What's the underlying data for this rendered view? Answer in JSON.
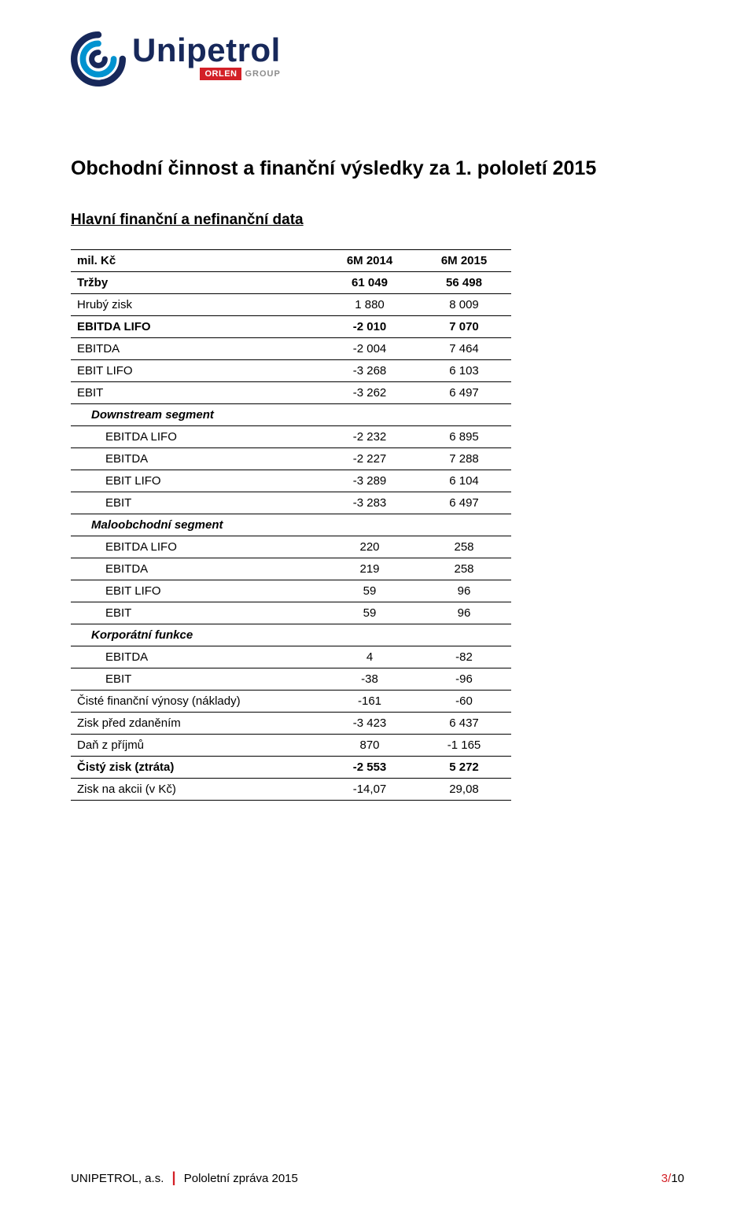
{
  "logo": {
    "company": "Unipetrol",
    "orlen": "ORLEN",
    "group": "GROUP",
    "mark_outer": "#17285a",
    "mark_inner": "#0093d0"
  },
  "title": "Obchodní činnost a finanční výsledky za 1. pololetí 2015",
  "section": "Hlavní finanční a nefinanční data",
  "table": {
    "head": [
      "mil. Kč",
      "6M 2014",
      "6M 2015"
    ],
    "rows": [
      {
        "label": "Tržby",
        "c1": "61 049",
        "c2": "56 498",
        "bold": true,
        "indent": 0
      },
      {
        "label": "Hrubý zisk",
        "c1": "1 880",
        "c2": "8 009",
        "bold": false,
        "indent": 0
      },
      {
        "label": "EBITDA LIFO",
        "c1": "-2 010",
        "c2": "7 070",
        "bold": true,
        "indent": 0
      },
      {
        "label": "EBITDA",
        "c1": "-2 004",
        "c2": "7 464",
        "bold": false,
        "indent": 0
      },
      {
        "label": "EBIT LIFO",
        "c1": "-3 268",
        "c2": "6 103",
        "bold": false,
        "indent": 0
      },
      {
        "label": "EBIT",
        "c1": "-3 262",
        "c2": "6 497",
        "bold": false,
        "indent": 0
      },
      {
        "label": "Downstream segment",
        "c1": "",
        "c2": "",
        "bold": false,
        "indent": 1,
        "italic": true
      },
      {
        "label": "EBITDA LIFO",
        "c1": "-2 232",
        "c2": "6 895",
        "bold": false,
        "indent": 2
      },
      {
        "label": "EBITDA",
        "c1": "-2 227",
        "c2": "7 288",
        "bold": false,
        "indent": 2
      },
      {
        "label": "EBIT LIFO",
        "c1": "-3 289",
        "c2": "6 104",
        "bold": false,
        "indent": 2
      },
      {
        "label": "EBIT",
        "c1": "-3 283",
        "c2": "6 497",
        "bold": false,
        "indent": 2
      },
      {
        "label": "Maloobchodní segment",
        "c1": "",
        "c2": "",
        "bold": false,
        "indent": 1,
        "italic": true
      },
      {
        "label": "EBITDA LIFO",
        "c1": "220",
        "c2": "258",
        "bold": false,
        "indent": 2
      },
      {
        "label": "EBITDA",
        "c1": "219",
        "c2": "258",
        "bold": false,
        "indent": 2
      },
      {
        "label": "EBIT LIFO",
        "c1": "59",
        "c2": "96",
        "bold": false,
        "indent": 2
      },
      {
        "label": "EBIT",
        "c1": "59",
        "c2": "96",
        "bold": false,
        "indent": 2
      },
      {
        "label": "Korporátní funkce",
        "c1": "",
        "c2": "",
        "bold": false,
        "indent": 1,
        "italic": true
      },
      {
        "label": "EBITDA",
        "c1": "4",
        "c2": "-82",
        "bold": false,
        "indent": 2
      },
      {
        "label": "EBIT",
        "c1": "-38",
        "c2": "-96",
        "bold": false,
        "indent": 2
      },
      {
        "label": "Čisté finanční výnosy (náklady)",
        "c1": "-161",
        "c2": "-60",
        "bold": false,
        "indent": 0
      },
      {
        "label": "Zisk před zdaněním",
        "c1": "-3 423",
        "c2": "6 437",
        "bold": false,
        "indent": 0
      },
      {
        "label": "Daň z příjmů",
        "c1": "870",
        "c2": "-1 165",
        "bold": false,
        "indent": 0
      },
      {
        "label": "Čistý zisk (ztráta)",
        "c1": "-2 553",
        "c2": "5 272",
        "bold": true,
        "indent": 0
      },
      {
        "label": "Zisk na akcii (v Kč)",
        "c1": "-14,07",
        "c2": "29,08",
        "bold": false,
        "indent": 0
      }
    ]
  },
  "footer": {
    "company": "UNIPETROL, a.s.",
    "doc": "Pololetní zpráva 2015",
    "page": "3",
    "total": "10"
  }
}
